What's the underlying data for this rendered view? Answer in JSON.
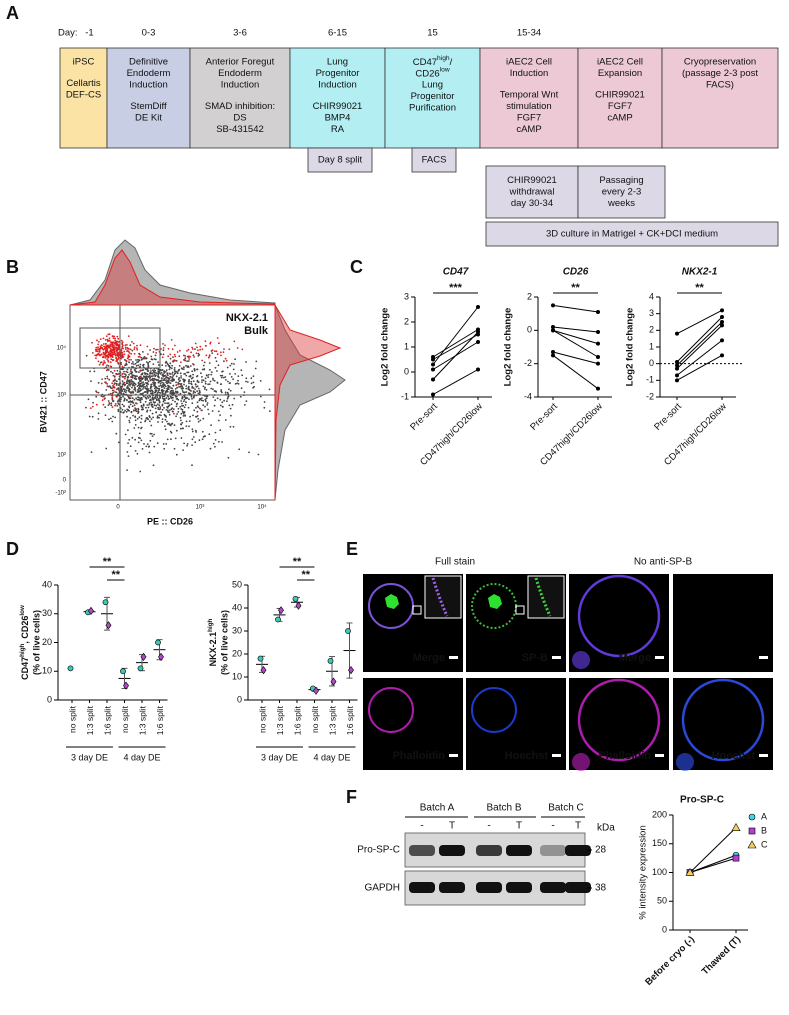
{
  "panel_labels": [
    "A",
    "B",
    "C",
    "D",
    "E",
    "F"
  ],
  "timeline": {
    "day_label": "Day:",
    "days": [
      "-1",
      "0-3",
      "3-6",
      "6-15",
      "15",
      "15-34"
    ],
    "stages": [
      {
        "blocks": [
          [
            "iPSC"
          ],
          [
            "Cellartis",
            "DEF-CS"
          ]
        ]
      },
      {
        "blocks": [
          [
            "Definitive",
            "Endoderm",
            "Induction"
          ],
          [
            "StemDiff",
            "DE Kit"
          ]
        ]
      },
      {
        "blocks": [
          [
            "Anterior Foregut",
            "Endoderm",
            "Induction"
          ],
          [
            "SMAD inhibition:",
            "DS",
            "SB-431542"
          ]
        ]
      },
      {
        "blocks": [
          [
            "Lung",
            "Progenitor",
            "Induction"
          ],
          [
            "CHIR99021",
            "BMP4",
            "RA"
          ]
        ]
      },
      {
        "blocks": [
          [
            [
              "CD47",
              "high",
              "/"
            ],
            [
              "CD26",
              "low"
            ],
            "Lung",
            "Progenitor",
            "Purification"
          ]
        ]
      },
      {
        "blocks": [
          [
            "iAEC2 Cell",
            "Induction"
          ],
          [
            "Temporal Wnt",
            "stimulation",
            "FGF7",
            "cAMP"
          ]
        ]
      },
      {
        "blocks": [
          [
            "iAEC2 Cell",
            "Expansion"
          ],
          [
            "CHIR99021",
            "FGF7",
            "cAMP"
          ]
        ]
      },
      {
        "blocks": [
          [
            "Cryopreservation",
            "(passage 2-3 post",
            "FACS)"
          ]
        ]
      }
    ],
    "steps": [
      {
        "lines": [
          "Day 8 split"
        ]
      },
      {
        "lines": [
          "FACS"
        ]
      },
      {
        "lines": [
          "CHIR99021",
          "withdrawal",
          "day 30-34"
        ]
      },
      {
        "lines": [
          "Passaging",
          "every 2-3",
          "weeks"
        ]
      },
      {
        "lines": [
          "3D culture in Matrigel + CK+DCI medium"
        ]
      }
    ]
  },
  "flow": {
    "legend": [
      "NKX-2.1",
      "Bulk"
    ],
    "y_label": "BV421 :: CD47",
    "x_label": "PE :: CD26",
    "y_tick_labels": [
      "10⁴",
      "10³",
      "10²",
      "0",
      "-10²"
    ],
    "x_tick_labels": [
      "0",
      "10³",
      "10⁴"
    ]
  },
  "chart_data": [
    {
      "type": "line",
      "title": "CD47",
      "y_label": "Log2 fold change",
      "categories": [
        "Pre-sort",
        "CD47high/CD26low"
      ],
      "color": "#000000",
      "series": [
        {
          "values": [
            0.6,
            1.7
          ]
        },
        {
          "values": [
            0.5,
            1.5
          ]
        },
        {
          "values": [
            0.3,
            2.6
          ]
        },
        {
          "values": [
            0.1,
            1.2
          ]
        },
        {
          "values": [
            -0.3,
            1.6
          ]
        },
        {
          "values": [
            -0.9,
            0.1
          ]
        }
      ],
      "ylim": [
        -1,
        3
      ],
      "yticks": [
        -1,
        0,
        1,
        2,
        3
      ],
      "significance": "***"
    },
    {
      "type": "line",
      "title": "CD26",
      "y_label": "Log2 fold change",
      "categories": [
        "Pre-sort",
        "CD47high/CD26low"
      ],
      "color": "#000000",
      "series": [
        {
          "values": [
            1.5,
            1.1
          ]
        },
        {
          "values": [
            0.2,
            -0.1
          ]
        },
        {
          "values": [
            0,
            -0.8
          ]
        },
        {
          "values": [
            0,
            -1.6
          ]
        },
        {
          "values": [
            -1.3,
            -2.0
          ]
        },
        {
          "values": [
            -1.5,
            -3.5
          ]
        }
      ],
      "ylim": [
        -4,
        2
      ],
      "yticks": [
        -4,
        -2,
        0,
        2
      ],
      "significance": "**"
    },
    {
      "type": "line",
      "title": "NKX2-1",
      "y_label": "Log2 fold change",
      "categories": [
        "Pre-sort",
        "CD47high/CD26low"
      ],
      "color": "#000000",
      "series": [
        {
          "values": [
            1.8,
            3.2
          ]
        },
        {
          "values": [
            0.1,
            2.8
          ]
        },
        {
          "values": [
            -0.1,
            2.5
          ]
        },
        {
          "values": [
            -0.3,
            2.3
          ]
        },
        {
          "values": [
            -0.7,
            1.4
          ]
        },
        {
          "values": [
            -1.0,
            0.5
          ]
        }
      ],
      "ylim": [
        -2,
        4
      ],
      "yticks": [
        -2,
        -1,
        0,
        1,
        2,
        3,
        4
      ],
      "reference_line": 0,
      "significance": "**"
    },
    {
      "type": "dot",
      "y_label": [
        [
          "CD47",
          "high",
          ", CD26",
          "low"
        ],
        "(% of live cells)"
      ],
      "categories": [
        "no split",
        "1:3 split",
        "1:6 split",
        "no split",
        "1:3 split",
        "1:6 split"
      ],
      "groups": [
        "3 day DE",
        "4 day DE"
      ],
      "series": [
        {
          "color": "#3cc8b4",
          "marker": "circle",
          "values": [
            11,
            30.5,
            34,
            10,
            11,
            20
          ]
        },
        {
          "color": "#b048c8",
          "marker": "diamond",
          "values": [
            null,
            31,
            26,
            5,
            15,
            15
          ]
        }
      ],
      "means": [
        null,
        30.7,
        30,
        7.5,
        13,
        17.5
      ],
      "sd": [
        null,
        0.4,
        5.7,
        3.5,
        2.8,
        3.5
      ],
      "ylim": [
        0,
        40
      ],
      "yticks": [
        0,
        10,
        20,
        30,
        40
      ],
      "significance": [
        "**",
        "**"
      ]
    },
    {
      "type": "dot",
      "y_label": [
        [
          "NKX-2.1",
          "high"
        ],
        "(% of live cells)"
      ],
      "categories": [
        "no split",
        "1:3 split",
        "1:6 split",
        "no split",
        "1:3 split",
        "1:6 split"
      ],
      "groups": [
        "3 day DE",
        "4 day DE"
      ],
      "series": [
        {
          "color": "#3cc8b4",
          "marker": "circle",
          "values": [
            18,
            35,
            44,
            5,
            17,
            30
          ]
        },
        {
          "color": "#b048c8",
          "marker": "diamond",
          "values": [
            13,
            39,
            41,
            4,
            8,
            13
          ]
        }
      ],
      "means": [
        15.5,
        37,
        42.5,
        4.5,
        12.5,
        21.5
      ],
      "sd": [
        3.5,
        2.8,
        2.1,
        0.7,
        6.4,
        12
      ],
      "ylim": [
        0,
        50
      ],
      "yticks": [
        0,
        10,
        20,
        30,
        40,
        50
      ],
      "significance": [
        "**",
        "**"
      ]
    },
    {
      "type": "line",
      "title": "Pro-SP-C",
      "y_label": "% intensity expression",
      "categories": [
        "Before cryo (-)",
        "Thawed (T)"
      ],
      "series": [
        {
          "name": "A",
          "color": "#40d8e8",
          "marker": "circle",
          "values": [
            100,
            130
          ]
        },
        {
          "name": "B",
          "color": "#b040d0",
          "marker": "square",
          "values": [
            100,
            125
          ]
        },
        {
          "name": "C",
          "color": "#f2d060",
          "marker": "triangle",
          "values": [
            100,
            178
          ]
        }
      ],
      "ylim": [
        0,
        200
      ],
      "yticks": [
        0,
        50,
        100,
        150,
        200
      ],
      "legend": "upper-right"
    }
  ],
  "microscopy": {
    "headers": [
      "Full stain",
      "No anti-SP-B"
    ],
    "labels": [
      "Merge",
      "SP-B",
      "Merge",
      "Phalloidin",
      "Hoechst",
      "Phalloidin",
      "Hoechst"
    ]
  },
  "blot": {
    "batches": [
      "Batch A",
      "Batch B",
      "Batch C"
    ],
    "lanes": [
      "-",
      "T",
      "-",
      "T",
      "-",
      "T"
    ],
    "unit": "kDa",
    "proteins": [
      "Pro-SP-C",
      "GAPDH"
    ],
    "markers": [
      "28",
      "38"
    ]
  }
}
